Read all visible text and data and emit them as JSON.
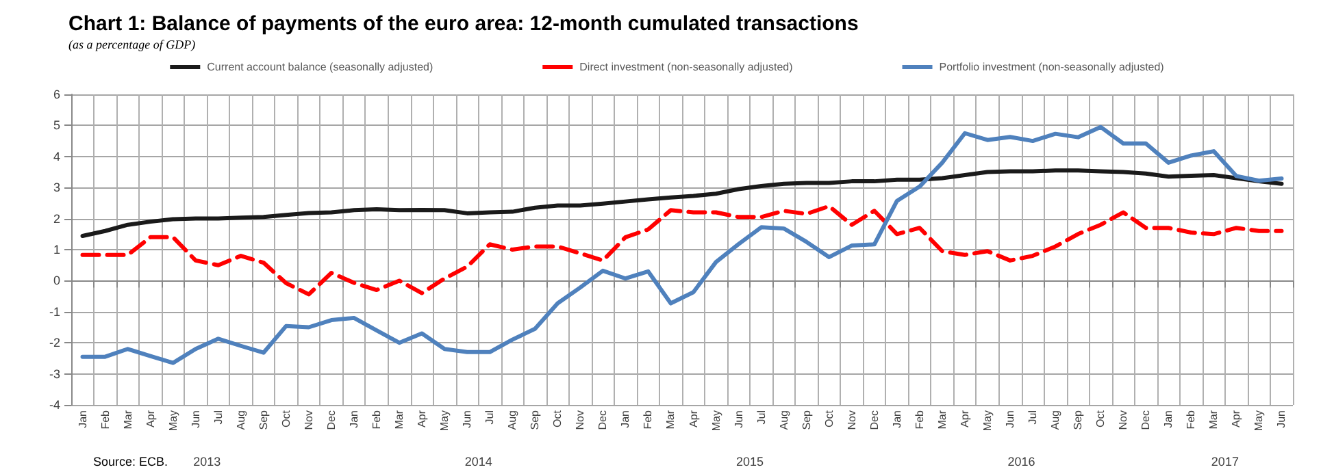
{
  "chart_data": {
    "type": "line",
    "title": "Chart 1: Balance of payments of the euro area: 12-month cumulated transactions",
    "subtitle": "(as a percentage of GDP)",
    "categories": [
      "Jan",
      "Feb",
      "Mar",
      "Apr",
      "May",
      "Jun",
      "Jul",
      "Aug",
      "Sep",
      "Oct",
      "Nov",
      "Dec",
      "Jan",
      "Feb",
      "Mar",
      "Apr",
      "May",
      "Jun",
      "Jul",
      "Aug",
      "Sep",
      "Oct",
      "Nov",
      "Dec",
      "Jan",
      "Feb",
      "Mar",
      "Apr",
      "May",
      "Jun",
      "Jul",
      "Aug",
      "Sep",
      "Oct",
      "Nov",
      "Dec",
      "Jan",
      "Feb",
      "Mar",
      "Apr",
      "May",
      "Jun",
      "Jul",
      "Aug",
      "Sep",
      "Oct",
      "Nov",
      "Dec",
      "Jan",
      "Feb",
      "Mar",
      "Apr",
      "May",
      "Jun"
    ],
    "series": [
      {
        "name": "Current account balance (seasonally adjusted)",
        "color": "#1a1a1a",
        "line_style": "solid",
        "values": [
          1.44,
          1.6,
          1.8,
          1.9,
          1.98,
          2.0,
          2.0,
          2.03,
          2.05,
          2.12,
          2.18,
          2.2,
          2.27,
          2.3,
          2.27,
          2.28,
          2.27,
          2.17,
          2.2,
          2.22,
          2.35,
          2.42,
          2.42,
          2.48,
          2.55,
          2.62,
          2.68,
          2.73,
          2.8,
          2.95,
          3.05,
          3.12,
          3.15,
          3.15,
          3.2,
          3.2,
          3.25,
          3.25,
          3.3,
          3.4,
          3.5,
          3.52,
          3.52,
          3.55,
          3.55,
          3.52,
          3.5,
          3.45,
          3.35,
          3.38,
          3.4,
          3.3,
          3.2,
          3.12
        ]
      },
      {
        "name": "Direct investment (non-seasonally adjusted)",
        "color": "#ff0000",
        "line_style": "dashed",
        "values": [
          0.83,
          0.83,
          0.83,
          1.4,
          1.4,
          0.65,
          0.5,
          0.8,
          0.58,
          -0.08,
          -0.44,
          0.25,
          -0.07,
          -0.3,
          0.0,
          -0.4,
          0.07,
          0.45,
          1.17,
          1.0,
          1.1,
          1.1,
          0.88,
          0.65,
          1.4,
          1.65,
          2.27,
          2.2,
          2.2,
          2.05,
          2.05,
          2.25,
          2.15,
          2.4,
          1.8,
          2.25,
          1.5,
          1.7,
          0.95,
          0.83,
          0.95,
          0.65,
          0.8,
          1.1,
          1.5,
          1.8,
          2.2,
          1.7,
          1.7,
          1.55,
          1.5,
          1.7,
          1.6,
          1.6
        ]
      },
      {
        "name": "Portfolio investment (non-seasonally adjusted)",
        "color": "#4f81bd",
        "line_style": "solid",
        "values": [
          -2.45,
          -2.45,
          -2.2,
          -2.43,
          -2.65,
          -2.2,
          -1.87,
          -2.1,
          -2.32,
          -1.46,
          -1.5,
          -1.27,
          -1.2,
          -1.6,
          -2.0,
          -1.7,
          -2.2,
          -2.3,
          -2.3,
          -1.9,
          -1.55,
          -0.73,
          -0.22,
          0.32,
          0.07,
          0.3,
          -0.73,
          -0.37,
          0.6,
          1.18,
          1.72,
          1.68,
          1.25,
          0.76,
          1.13,
          1.17,
          2.57,
          3.03,
          3.8,
          4.75,
          4.53,
          4.63,
          4.5,
          4.73,
          4.62,
          4.95,
          4.42,
          4.42,
          3.8,
          4.03,
          4.17,
          3.37,
          3.22,
          3.29
        ]
      }
    ],
    "ylim": [
      -4,
      6
    ],
    "yticks": [
      -4,
      -3,
      -2,
      -1,
      0,
      1,
      2,
      3,
      4,
      5,
      6
    ],
    "grid": true,
    "legend": "top",
    "marker": "none",
    "annotations": [
      "Source: ECB.",
      "2013",
      "2014",
      "2015",
      "2016",
      "2017"
    ]
  }
}
